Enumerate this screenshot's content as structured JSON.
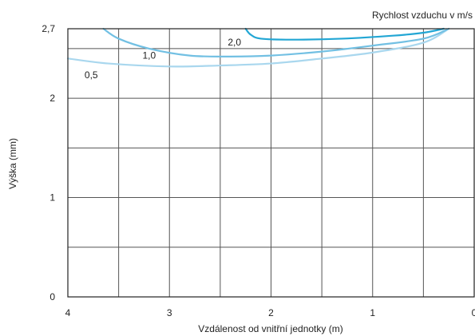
{
  "chart_data": {
    "type": "line",
    "xlabel": "Vzdálenost od vnitřní jednotky (m)",
    "ylabel": "Výška (mm)",
    "legend_title": "Rychlost vzduchu v m/s",
    "xlim": [
      4,
      0
    ],
    "ylim": [
      0,
      2.7
    ],
    "x_ticks": [
      {
        "value": 4,
        "label": "4"
      },
      {
        "value": 3,
        "label": "3"
      },
      {
        "value": 2,
        "label": "2"
      },
      {
        "value": 1,
        "label": "1"
      },
      {
        "value": 0,
        "label": "0"
      }
    ],
    "y_ticks": [
      {
        "value": 0,
        "label": "0"
      },
      {
        "value": 1,
        "label": "1"
      },
      {
        "value": 2,
        "label": "2"
      },
      {
        "value": 2.7,
        "label": "2,7"
      }
    ],
    "x_grid": [
      4,
      3.5,
      3,
      2.5,
      2,
      1.5,
      1,
      0.5,
      0
    ],
    "y_grid": [
      0,
      0.5,
      1,
      1.5,
      2,
      2.5,
      2.7
    ],
    "series": [
      {
        "name": "0,5",
        "color": "#a9d7ee",
        "points": [
          [
            4.0,
            2.4
          ],
          [
            3.6,
            2.35
          ],
          [
            3.0,
            2.32
          ],
          [
            2.5,
            2.33
          ],
          [
            2.0,
            2.35
          ],
          [
            1.5,
            2.4
          ],
          [
            1.0,
            2.46
          ],
          [
            0.5,
            2.56
          ],
          [
            0.25,
            2.7
          ]
        ]
      },
      {
        "name": "1,0",
        "color": "#72c0e3",
        "points": [
          [
            3.65,
            2.7
          ],
          [
            3.5,
            2.6
          ],
          [
            3.2,
            2.5
          ],
          [
            2.8,
            2.43
          ],
          [
            2.4,
            2.42
          ],
          [
            2.0,
            2.43
          ],
          [
            1.5,
            2.47
          ],
          [
            1.0,
            2.53
          ],
          [
            0.5,
            2.6
          ],
          [
            0.25,
            2.7
          ]
        ]
      },
      {
        "name": "2,0",
        "color": "#22a6d4",
        "points": [
          [
            2.25,
            2.7
          ],
          [
            2.2,
            2.64
          ],
          [
            2.1,
            2.6
          ],
          [
            1.8,
            2.59
          ],
          [
            1.3,
            2.6
          ],
          [
            0.8,
            2.63
          ],
          [
            0.5,
            2.66
          ],
          [
            0.3,
            2.7
          ]
        ]
      }
    ],
    "series_labels": [
      {
        "text": "0,5",
        "x": 3.77,
        "y": 2.2
      },
      {
        "text": "1,0",
        "x": 3.2,
        "y": 2.4
      },
      {
        "text": "2,0",
        "x": 2.36,
        "y": 2.53
      }
    ]
  }
}
